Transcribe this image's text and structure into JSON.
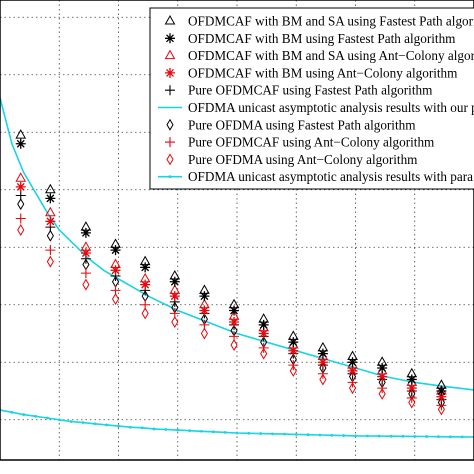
{
  "chart_data": {
    "type": "scatter",
    "title": "",
    "xlabel": "",
    "ylabel": "",
    "grid": true,
    "grid_style": "dotted",
    "legend_placement": "top-right",
    "xlim": [
      0,
      8
    ],
    "ylim": [
      0,
      8
    ],
    "x_gridlines": [
      1,
      2,
      3,
      4,
      5,
      6,
      7
    ],
    "y_gridlines": [
      0.7,
      1.7,
      2.7,
      3.7,
      4.7,
      5.7,
      6.7,
      7.7
    ],
    "series": [
      {
        "name": "OFDMCAF with BM and SA using Fastest Path algorithm",
        "marker": "triangle",
        "color": "#000000",
        "line": false,
        "x": [
          0.35,
          0.85,
          1.45,
          1.95,
          2.45,
          2.95,
          3.45,
          3.95,
          4.45,
          4.95,
          5.45,
          5.95,
          6.45,
          6.95,
          7.45
        ],
        "y": [
          5.65,
          4.7,
          4.05,
          3.75,
          3.45,
          3.2,
          2.95,
          2.7,
          2.45,
          2.15,
          1.95,
          1.8,
          1.7,
          1.5,
          1.3
        ]
      },
      {
        "name": "OFDMCAF with BM using Fastest Path algorithm",
        "marker": "asterisk",
        "color": "#000000",
        "line": false,
        "x": [
          0.35,
          0.85,
          1.45,
          1.95,
          2.45,
          2.95,
          3.45,
          3.95,
          4.45,
          4.95,
          5.45,
          5.95,
          6.45,
          6.95,
          7.45
        ],
        "y": [
          5.5,
          4.55,
          3.95,
          3.65,
          3.35,
          3.1,
          2.85,
          2.6,
          2.35,
          2.05,
          1.85,
          1.7,
          1.6,
          1.4,
          1.2
        ]
      },
      {
        "name": "OFDMCAF with BM and SA using Ant−Colony algorithm",
        "marker": "triangle",
        "color": "#e8070b",
        "line": false,
        "x": [
          0.35,
          0.85,
          1.45,
          1.95,
          2.45,
          2.95,
          3.45,
          3.95,
          4.45,
          4.95,
          5.45,
          5.95,
          6.45,
          6.95,
          7.45
        ],
        "y": [
          4.9,
          4.3,
          3.7,
          3.4,
          3.15,
          2.95,
          2.7,
          2.5,
          2.3,
          2.0,
          1.8,
          1.65,
          1.55,
          1.35,
          1.2
        ]
      },
      {
        "name": "OFDMCAF with BM using Ant−Colony algorithm",
        "marker": "asterisk",
        "color": "#e8070b",
        "line": false,
        "x": [
          0.35,
          0.85,
          1.45,
          1.95,
          2.45,
          2.95,
          3.45,
          3.95,
          4.45,
          4.95,
          5.45,
          5.95,
          6.45,
          6.95,
          7.45
        ],
        "y": [
          4.75,
          4.15,
          3.6,
          3.3,
          3.05,
          2.85,
          2.6,
          2.4,
          2.2,
          1.9,
          1.7,
          1.55,
          1.45,
          1.25,
          1.1
        ]
      },
      {
        "name": "Pure OFDMCAF using Fastest Path algorithm",
        "marker": "plus",
        "color": "#000000",
        "line": false,
        "x": [
          0.35,
          0.85,
          1.45,
          1.95,
          2.45,
          2.95,
          3.45,
          3.95,
          4.45,
          4.95,
          5.45,
          5.95,
          6.45,
          6.95,
          7.45
        ],
        "y": [
          4.6,
          4.05,
          3.5,
          3.2,
          2.95,
          2.75,
          2.55,
          2.35,
          2.15,
          1.85,
          1.65,
          1.5,
          1.4,
          1.2,
          1.05
        ]
      },
      {
        "name": "OFDMA unicast asymptotic analysis results with our p",
        "marker": "none",
        "color": "#17d4e6",
        "line": true,
        "x": [
          0.0,
          0.2,
          0.4,
          0.6,
          0.8,
          1.0,
          1.25,
          1.5,
          1.75,
          2.0,
          2.5,
          3.0,
          3.5,
          4.0,
          4.5,
          5.0,
          5.5,
          6.0,
          6.5,
          7.0,
          7.5,
          8.0
        ],
        "y": [
          6.3,
          5.5,
          5.0,
          4.65,
          4.3,
          4.0,
          3.75,
          3.5,
          3.3,
          3.15,
          2.85,
          2.6,
          2.4,
          2.2,
          2.05,
          1.9,
          1.75,
          1.6,
          1.45,
          1.35,
          1.28,
          1.22
        ]
      },
      {
        "name": "Pure OFDMA using Fastest Path algorithm",
        "marker": "diamond",
        "color": "#000000",
        "line": false,
        "x": [
          0.35,
          0.85,
          1.45,
          1.95,
          2.45,
          2.95,
          3.45,
          3.95,
          4.45,
          4.95,
          5.45,
          5.95,
          6.45,
          6.95,
          7.45
        ],
        "y": [
          4.45,
          3.9,
          3.4,
          3.1,
          2.85,
          2.65,
          2.45,
          2.25,
          2.05,
          1.75,
          1.6,
          1.45,
          1.35,
          1.15,
          1.0
        ]
      },
      {
        "name": "Pure OFDMCAF using Ant−Colony algorithm",
        "marker": "plus",
        "color": "#e8070b",
        "line": false,
        "x": [
          0.35,
          0.85,
          1.45,
          1.95,
          2.45,
          2.95,
          3.45,
          3.95,
          4.45,
          4.95,
          5.45,
          5.95,
          6.45,
          6.95,
          7.45
        ],
        "y": [
          4.2,
          3.65,
          3.25,
          2.95,
          2.7,
          2.55,
          2.35,
          2.15,
          1.95,
          1.65,
          1.5,
          1.35,
          1.25,
          1.08,
          0.95
        ]
      },
      {
        "name": "Pure OFDMA using Ant−Colony algorithm",
        "marker": "diamond",
        "color": "#e8070b",
        "line": false,
        "x": [
          0.35,
          0.85,
          1.45,
          1.95,
          2.45,
          2.95,
          3.45,
          3.95,
          4.45,
          4.95,
          5.45,
          5.95,
          6.45,
          6.95,
          7.45
        ],
        "y": [
          4.0,
          3.45,
          3.05,
          2.8,
          2.55,
          2.4,
          2.2,
          2.0,
          1.85,
          1.55,
          1.4,
          1.25,
          1.15,
          1.0,
          0.88
        ]
      },
      {
        "name": "OFDMA unicast asymptotic analysis results with para",
        "marker": "dot",
        "color": "#17d4e6",
        "line": true,
        "x": [
          0.0,
          0.2,
          0.4,
          0.6,
          0.8,
          1.0,
          1.2,
          1.4,
          1.6,
          1.8,
          2.0,
          2.2,
          2.4,
          2.6,
          2.8,
          3.0,
          3.2,
          3.4,
          3.6,
          3.8,
          4.0,
          4.2,
          4.4,
          4.6,
          4.8,
          5.0,
          5.2,
          5.4,
          5.6,
          5.8,
          6.0,
          6.2,
          6.4,
          6.6,
          6.8,
          7.0,
          7.2,
          7.4,
          7.6,
          7.8,
          8.0
        ],
        "y": [
          0.87,
          0.83,
          0.79,
          0.76,
          0.73,
          0.7,
          0.67,
          0.65,
          0.63,
          0.61,
          0.59,
          0.57,
          0.56,
          0.54,
          0.53,
          0.52,
          0.51,
          0.5,
          0.49,
          0.48,
          0.47,
          0.465,
          0.46,
          0.455,
          0.45,
          0.445,
          0.44,
          0.435,
          0.43,
          0.425,
          0.42,
          0.418,
          0.416,
          0.414,
          0.412,
          0.41,
          0.408,
          0.406,
          0.404,
          0.402,
          0.4
        ]
      }
    ]
  }
}
